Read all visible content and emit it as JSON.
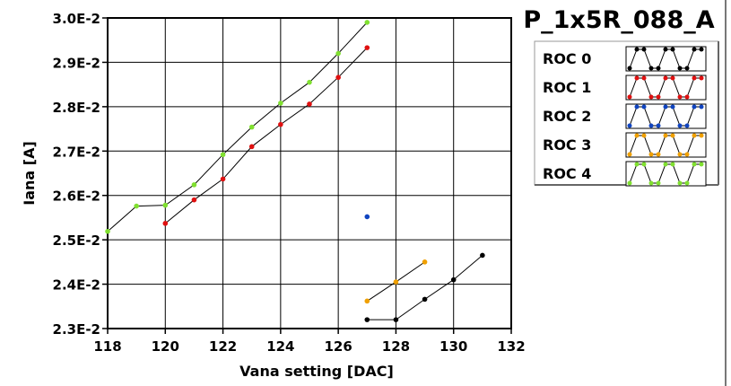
{
  "chart_data": {
    "type": "line",
    "title": "P_1x5R_088_A",
    "xlabel": "Vana setting [DAC]",
    "ylabel": "Iana [A]",
    "xlim": [
      118,
      132
    ],
    "ylim": [
      0.023,
      0.03
    ],
    "xticks": [
      118,
      120,
      122,
      124,
      126,
      128,
      130,
      132
    ],
    "xtick_labels": [
      "118",
      "120",
      "122",
      "124",
      "126",
      "128",
      "130",
      "132"
    ],
    "yticks": [
      0.023,
      0.024,
      0.025,
      0.026,
      0.027,
      0.028,
      0.029,
      0.03
    ],
    "ytick_labels": [
      "2.3E-2",
      "2.4E-2",
      "2.5E-2",
      "2.6E-2",
      "2.7E-2",
      "2.8E-2",
      "2.9E-2",
      "3.0E-2"
    ],
    "grid": true,
    "legend_position": "top-right",
    "series": [
      {
        "name": "ROC 0",
        "color": "#000000",
        "points": [
          [
            127,
            0.0232
          ],
          [
            128,
            0.0232
          ],
          [
            129,
            0.02366
          ],
          [
            130,
            0.0241
          ],
          [
            131,
            0.02465
          ]
        ]
      },
      {
        "name": "ROC 1",
        "color": "#e01010",
        "points": [
          [
            120,
            0.02537
          ],
          [
            121,
            0.0259
          ],
          [
            122,
            0.02637
          ],
          [
            123,
            0.0271
          ],
          [
            124,
            0.0276
          ],
          [
            125,
            0.02806
          ],
          [
            126,
            0.02866
          ],
          [
            127,
            0.02933
          ]
        ]
      },
      {
        "name": "ROC 2",
        "color": "#1044c0",
        "points": [
          [
            127,
            0.02552
          ]
        ]
      },
      {
        "name": "ROC 3",
        "color": "#f0a000",
        "points": [
          [
            127,
            0.02362
          ],
          [
            128,
            0.02405
          ],
          [
            129,
            0.0245
          ]
        ]
      },
      {
        "name": "ROC 4",
        "color": "#80e030",
        "points": [
          [
            118,
            0.02519
          ],
          [
            119,
            0.02576
          ],
          [
            120,
            0.02578
          ],
          [
            121,
            0.02624
          ],
          [
            122,
            0.02692
          ],
          [
            123,
            0.02754
          ],
          [
            124,
            0.02808
          ],
          [
            125,
            0.02855
          ],
          [
            126,
            0.0292
          ],
          [
            127,
            0.0299
          ]
        ]
      }
    ]
  }
}
